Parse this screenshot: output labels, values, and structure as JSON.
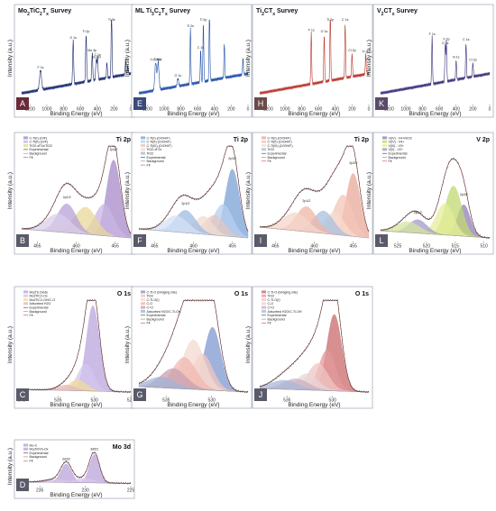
{
  "axis_labels": {
    "x": "Binding Energy (eV)",
    "y": "Intensity (a.u.)"
  },
  "chart_data": [
    {
      "id": "A",
      "type": "line",
      "title": "Mo2TiC2Tx Survey",
      "title_main": "Mo",
      "title_parts": [
        [
          "Mo",
          ""
        ],
        [
          "2",
          "sub"
        ],
        [
          "TiC",
          ""
        ],
        [
          "2",
          "sub"
        ],
        [
          "T",
          ""
        ],
        [
          "x",
          "sub"
        ],
        [
          " Survey",
          ""
        ]
      ],
      "xlim": [
        1300,
        0
      ],
      "xticks": [
        1200,
        1000,
        800,
        600,
        400,
        200,
        0
      ],
      "annotations": [
        "F 1s",
        "O 1s",
        "Ti 2p",
        "Mo 3p",
        "Mo 3d",
        "C 1s",
        "Ti 3s"
      ],
      "series": [
        {
          "name": "survey",
          "color": "#1a2a6e"
        }
      ]
    },
    {
      "id": "E",
      "type": "line",
      "title": "ML Ti3C2Tx Survey",
      "title_parts": [
        [
          "ML Ti",
          ""
        ],
        [
          "3",
          "sub"
        ],
        [
          "C",
          ""
        ],
        [
          "2",
          "sub"
        ],
        [
          "T",
          ""
        ],
        [
          "x",
          "sub"
        ],
        [
          " Survey",
          ""
        ]
      ],
      "xlim": [
        1300,
        0
      ],
      "xticks": [
        1200,
        1000,
        800,
        600,
        400,
        200,
        0
      ],
      "annotations": [
        "Ti LMM",
        "F KLL",
        "O 1s",
        "Ti 2s",
        "Ti 2p",
        "C 1s"
      ],
      "series": [
        {
          "name": "survey",
          "color": "#1f4fa8"
        }
      ]
    },
    {
      "id": "H",
      "type": "line",
      "title": "Ti2CTx Survey",
      "title_parts": [
        [
          "Ti",
          ""
        ],
        [
          "2",
          "sub"
        ],
        [
          "CT",
          ""
        ],
        [
          "x",
          "sub"
        ],
        [
          " Survey",
          ""
        ]
      ],
      "xlim": [
        1300,
        0
      ],
      "xticks": [
        1200,
        1000,
        800,
        600,
        400,
        200,
        0
      ],
      "annotations": [
        "F 1s",
        "O 1s",
        "Ti 2p",
        "C 1s",
        "Cl 2p",
        "Ti 3p"
      ],
      "series": [
        {
          "name": "survey",
          "color": "#b8342a"
        }
      ]
    },
    {
      "id": "K",
      "type": "line",
      "title": "V2CTx Survey",
      "title_parts": [
        [
          "V",
          ""
        ],
        [
          "2",
          "sub"
        ],
        [
          "CT",
          ""
        ],
        [
          "x",
          "sub"
        ],
        [
          " Survey",
          ""
        ]
      ],
      "xlim": [
        1300,
        0
      ],
      "xticks": [
        1200,
        1000,
        800,
        600,
        400,
        200,
        0
      ],
      "annotations": [
        "F 1s",
        "V 2p",
        "O 1s",
        "C 1s",
        "N 1s",
        "Cl 2p"
      ],
      "series": [
        {
          "name": "survey",
          "color": "#3a2f7a"
        }
      ]
    },
    {
      "id": "B",
      "type": "area",
      "title": "Ti 2p",
      "xlim": [
        467,
        453
      ],
      "xticks": [
        465,
        460,
        455
      ],
      "legend": [
        "C-Ti(I)-(O/F)",
        "C-Ti(II)-(O/F)",
        "TiO2-xF2x/TiO2",
        "Experimental",
        "Background",
        "Fit"
      ],
      "annotations": [
        "2p1/2",
        "2p3/2"
      ]
    },
    {
      "id": "F",
      "type": "area",
      "title": "Ti 2p",
      "xlim": [
        467,
        453
      ],
      "xticks": [
        465,
        460,
        455
      ],
      "legend": [
        "C-Ti(I)-(O/OH/F)",
        "C-Ti(II)-(O/OH/F)",
        "C-Ti(III)-(O/OH/F)",
        "TiO2-xF2x",
        "TiO2",
        "Experimental",
        "Background",
        "Fit"
      ],
      "annotations": [
        "2p1/2",
        "2p3/2"
      ]
    },
    {
      "id": "I",
      "type": "area",
      "title": "Ti 2p",
      "xlim": [
        467,
        453
      ],
      "xticks": [
        465,
        460,
        455
      ],
      "legend": [
        "C-Ti(I)-(O/OH/F)",
        "C-Ti(II)-(O/OH/F)",
        "C-Ti(III)-(O/OH/F)",
        "TiO2",
        "Experimental",
        "Background",
        "Fit"
      ],
      "annotations": [
        "2p1/2",
        "2p3/2"
      ]
    },
    {
      "id": "L",
      "type": "area",
      "title": "V 2p",
      "xlim": [
        528,
        509
      ],
      "xticks": [
        525,
        520,
        515,
        510
      ],
      "legend": [
        "V(IV) - V4+N/O2",
        "V(IV) - V4+",
        "V(III) - V3+",
        "V(II) - V2+",
        "Experimental",
        "Background",
        "Fit"
      ],
      "annotations": [
        "2p1/2",
        "2p3/2"
      ]
    },
    {
      "id": "C",
      "type": "area",
      "title": "O 1s",
      "xlim": [
        540,
        525
      ],
      "xticks": [
        540,
        535,
        530,
        525
      ],
      "legend": [
        "Mo(Ti) Oxide",
        "Mo2TiC2-Ox",
        "Mo2TiC2-OH/C-O",
        "Adsorbed H2O",
        "Experimental",
        "Background",
        "Fit"
      ]
    },
    {
      "id": "G",
      "type": "area",
      "title": "O 1s",
      "xlim": [
        538,
        526
      ],
      "xticks": [
        535,
        530
      ],
      "legend": [
        "C-Ti-O (bridging site)",
        "TiO2",
        "C-Ti-O(I)",
        "C-O",
        "C=O",
        "Adsorbed H2O/C-Ti-OH",
        "Experimental",
        "Background",
        "Fit"
      ]
    },
    {
      "id": "J",
      "type": "area",
      "title": "O 1s",
      "xlim": [
        538,
        526
      ],
      "xticks": [
        535,
        530
      ],
      "legend": [
        "C-Ti-O (bridging site)",
        "TiO2",
        "C-Ti-O(I)",
        "C-O",
        "C=O",
        "Adsorbed H2O/C-Ti-OH",
        "Experimental",
        "Background",
        "Fit"
      ]
    },
    {
      "id": "D",
      "type": "area",
      "title": "Mo 3d",
      "xlim": [
        237,
        225
      ],
      "xticks": [
        235,
        230,
        225
      ],
      "legend": [
        "Mo-C",
        "Mo(IV/VI)-Ox",
        "Experimental",
        "Background",
        "Fit"
      ],
      "annotations": [
        "3d3/2",
        "3d5/2"
      ]
    }
  ],
  "colors": {
    "frame": "#9aa3b5",
    "badge": "#6b6b7a",
    "experimental": "#333333",
    "background": "#888888",
    "fit": "#c84a4a"
  }
}
